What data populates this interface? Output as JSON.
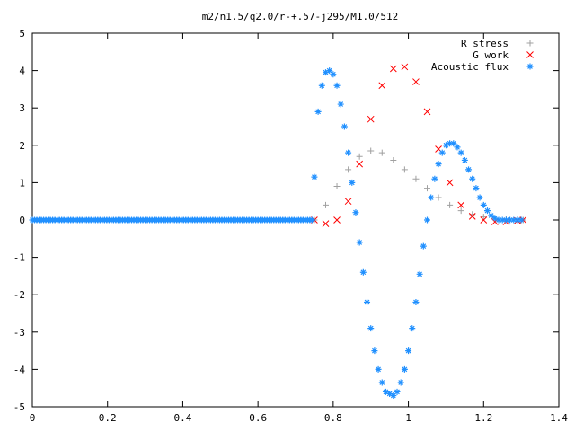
{
  "chart_data": {
    "type": "scatter",
    "title": "m2/n1.5/q2.0/r-+.57-j295/M1.0/512",
    "xlabel": "",
    "ylabel": "",
    "xlim": [
      0,
      1.4
    ],
    "ylim": [
      -5,
      5
    ],
    "x_ticks": [
      "0",
      "0.2",
      "0.4",
      "0.6",
      "0.8",
      "1",
      "1.2",
      "1.4"
    ],
    "y_ticks": [
      "5",
      "4",
      "3",
      "2",
      "1",
      "0",
      "-1",
      "-2",
      "-3",
      "-4",
      "-5"
    ],
    "grid": false,
    "legend_position": "top-right",
    "series": [
      {
        "name": "R stress",
        "marker": "+",
        "color": "#a0a0a0",
        "x": [
          0.75,
          0.78,
          0.81,
          0.84,
          0.87,
          0.9,
          0.93,
          0.96,
          0.99,
          1.02,
          1.05,
          1.08,
          1.11,
          1.14,
          1.17,
          1.2,
          1.23,
          1.26,
          1.29,
          1.305
        ],
        "y": [
          0.0,
          0.4,
          0.9,
          1.35,
          1.7,
          1.85,
          1.8,
          1.6,
          1.35,
          1.1,
          0.85,
          0.6,
          0.4,
          0.25,
          0.15,
          0.08,
          0.04,
          0.02,
          0.01,
          0.0
        ]
      },
      {
        "name": "G work",
        "marker": "x",
        "color": "#ff0000",
        "x": [
          0.75,
          0.78,
          0.81,
          0.84,
          0.87,
          0.9,
          0.93,
          0.96,
          0.99,
          1.02,
          1.05,
          1.08,
          1.11,
          1.14,
          1.17,
          1.2,
          1.23,
          1.26,
          1.29,
          1.305
        ],
        "y": [
          0.0,
          -0.1,
          0.0,
          0.5,
          1.5,
          2.7,
          3.6,
          4.05,
          4.1,
          3.7,
          2.9,
          1.9,
          1.0,
          0.4,
          0.1,
          0.0,
          -0.05,
          -0.05,
          -0.02,
          0.0
        ]
      },
      {
        "name": "Acoustic flux",
        "marker": "*",
        "color": "#2090ff",
        "x": [
          0.75,
          0.76,
          0.77,
          0.78,
          0.79,
          0.8,
          0.81,
          0.82,
          0.83,
          0.84,
          0.85,
          0.86,
          0.87,
          0.88,
          0.89,
          0.9,
          0.91,
          0.92,
          0.93,
          0.94,
          0.95,
          0.96,
          0.97,
          0.98,
          0.99,
          1.0,
          1.01,
          1.02,
          1.03,
          1.04,
          1.05,
          1.06,
          1.07,
          1.08,
          1.09,
          1.1,
          1.11,
          1.12,
          1.13,
          1.14,
          1.15,
          1.16,
          1.17,
          1.18,
          1.19,
          1.2,
          1.21,
          1.22,
          1.23,
          1.24,
          1.25,
          1.26,
          1.27,
          1.28,
          1.29,
          1.3
        ],
        "y": [
          1.15,
          2.9,
          3.6,
          3.95,
          4.0,
          3.9,
          3.6,
          3.1,
          2.5,
          1.8,
          1.0,
          0.2,
          -0.6,
          -1.4,
          -2.2,
          -2.9,
          -3.5,
          -4.0,
          -4.35,
          -4.6,
          -4.65,
          -4.7,
          -4.6,
          -4.35,
          -4.0,
          -3.5,
          -2.9,
          -2.2,
          -1.45,
          -0.7,
          0.0,
          0.6,
          1.1,
          1.5,
          1.8,
          2.0,
          2.05,
          2.05,
          1.95,
          1.8,
          1.6,
          1.35,
          1.1,
          0.85,
          0.6,
          0.4,
          0.25,
          0.12,
          0.05,
          0.0,
          0.0,
          0.0,
          0.0,
          0.0,
          0.0,
          0.0
        ]
      }
    ]
  }
}
